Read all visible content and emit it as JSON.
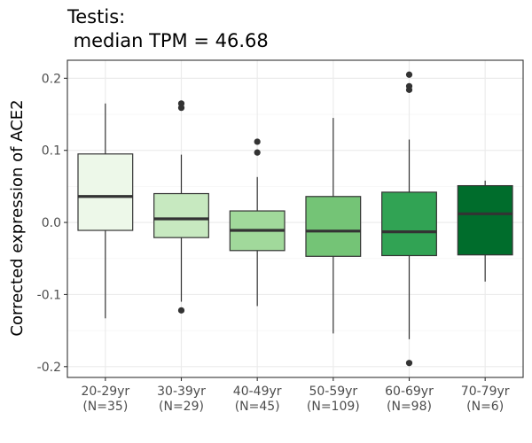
{
  "chart_data": {
    "type": "boxplot",
    "title_line1": "Testis:",
    "title_line2": " median TPM = 46.68",
    "xlabel": "",
    "ylabel": "Corrected expression of ACE2",
    "ylim": [
      -0.215,
      0.225
    ],
    "yticks": [
      0.2,
      0.1,
      0.0,
      -0.1,
      -0.2
    ],
    "ytick_labels": [
      "0.2",
      "0.1",
      "0.0",
      "-0.1",
      "-0.2"
    ],
    "grid": true,
    "legend": "none",
    "categories": [
      "20-29yr",
      "30-39yr",
      "40-49yr",
      "50-59yr",
      "60-69yr",
      "70-79yr"
    ],
    "category_counts": [
      "(N=35)",
      "(N=29)",
      "(N=45)",
      "(N=109)",
      "(N=98)",
      "(N=6)"
    ],
    "boxes": [
      {
        "lower_whisker": -0.133,
        "q1": -0.011,
        "median": 0.036,
        "q3": 0.095,
        "upper_whisker": 0.165,
        "outliers": [],
        "color": "#edf8e9"
      },
      {
        "lower_whisker": -0.11,
        "q1": -0.021,
        "median": 0.005,
        "q3": 0.04,
        "upper_whisker": 0.094,
        "outliers": [
          0.165,
          0.159,
          -0.122
        ],
        "color": "#c7e9c0"
      },
      {
        "lower_whisker": -0.116,
        "q1": -0.039,
        "median": -0.011,
        "q3": 0.016,
        "upper_whisker": 0.063,
        "outliers": [
          0.112,
          0.097
        ],
        "color": "#a1d99b"
      },
      {
        "lower_whisker": -0.154,
        "q1": -0.047,
        "median": -0.012,
        "q3": 0.036,
        "upper_whisker": 0.145,
        "outliers": [],
        "color": "#74c476"
      },
      {
        "lower_whisker": -0.162,
        "q1": -0.046,
        "median": -0.013,
        "q3": 0.042,
        "upper_whisker": 0.115,
        "outliers": [
          0.205,
          0.189,
          0.184,
          -0.195
        ],
        "color": "#31a354"
      },
      {
        "lower_whisker": -0.082,
        "q1": -0.045,
        "median": 0.012,
        "q3": 0.051,
        "upper_whisker": 0.058,
        "outliers": [],
        "color": "#006d2c"
      }
    ],
    "style": {
      "panel_border": "#333333",
      "grid_major": "#ebebeb",
      "grid_minor": "#f5f5f5",
      "box_outline": "#333333",
      "median_line": "#333333",
      "outlier_color": "#333333"
    }
  }
}
